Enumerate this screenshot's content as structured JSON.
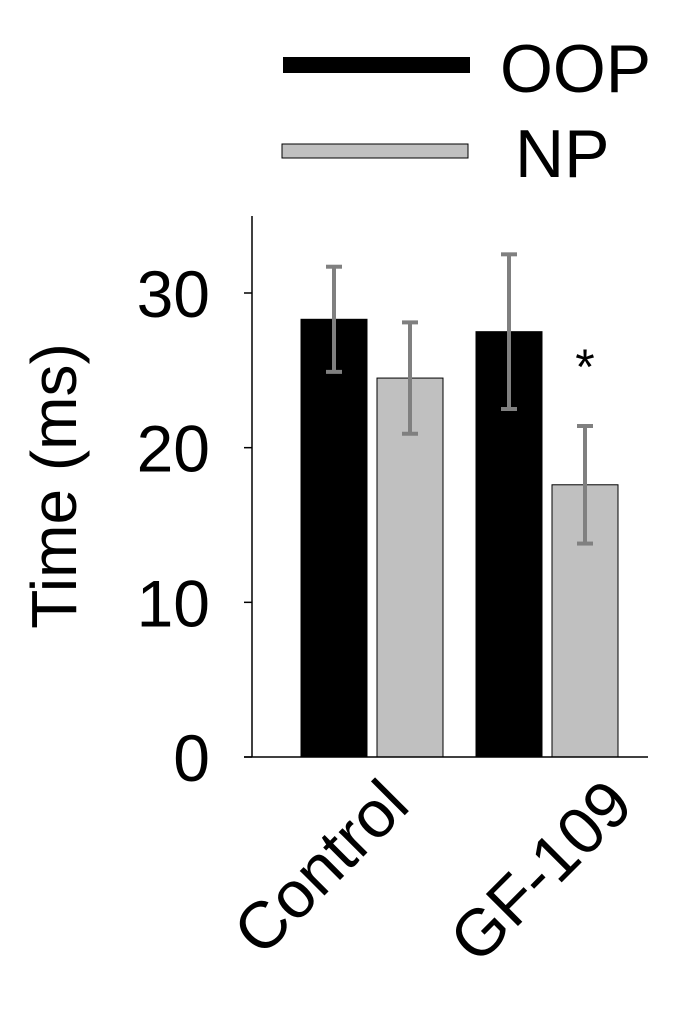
{
  "chart_data": {
    "type": "bar",
    "categories": [
      "Control",
      "GF-109"
    ],
    "series": [
      {
        "name": "OOP",
        "color": "#000000",
        "values": [
          28.3,
          27.5
        ],
        "errors": [
          3.4,
          5.0
        ]
      },
      {
        "name": "NP",
        "color": "#c0c0c0",
        "values": [
          24.5,
          17.6
        ],
        "errors": [
          3.6,
          3.8
        ]
      }
    ],
    "ylabel": "Time (ms)",
    "xlabel": "",
    "ylim": [
      0,
      35
    ],
    "yticks": [
      0,
      10,
      20,
      30
    ],
    "grid": false,
    "legend_position": "top",
    "annotations": [
      {
        "category": "GF-109",
        "series": "NP",
        "text": "*"
      }
    ],
    "error_bar_color": "#808080"
  }
}
